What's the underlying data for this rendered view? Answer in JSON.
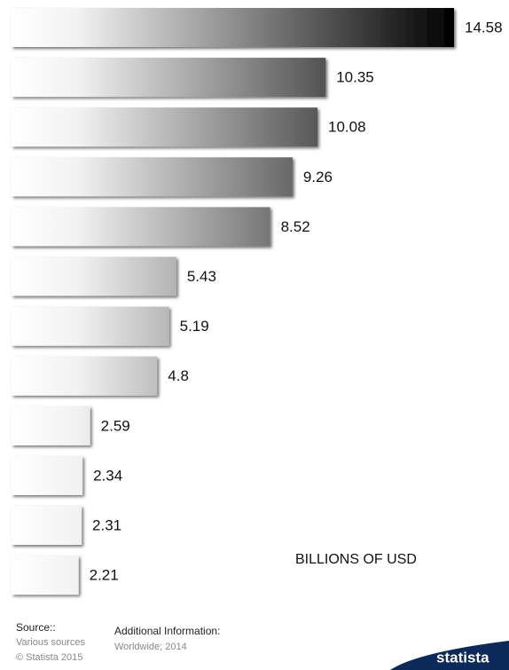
{
  "chart_data": {
    "type": "bar",
    "orientation": "horizontal",
    "categories": [
      null,
      null,
      null,
      null,
      null,
      null,
      null,
      null,
      null,
      null,
      null,
      null
    ],
    "values": [
      14.58,
      10.35,
      10.08,
      9.26,
      8.52,
      5.43,
      5.19,
      4.8,
      2.59,
      2.34,
      2.31,
      2.21
    ],
    "unit_label": "BILLIONS OF USD"
  },
  "footer": {
    "source_title": "Source::",
    "source": "Various sources",
    "copyright": "© Statista 2015",
    "info_title": "Additional Information:",
    "info": "Worldwide; 2014",
    "logo": "statista"
  }
}
